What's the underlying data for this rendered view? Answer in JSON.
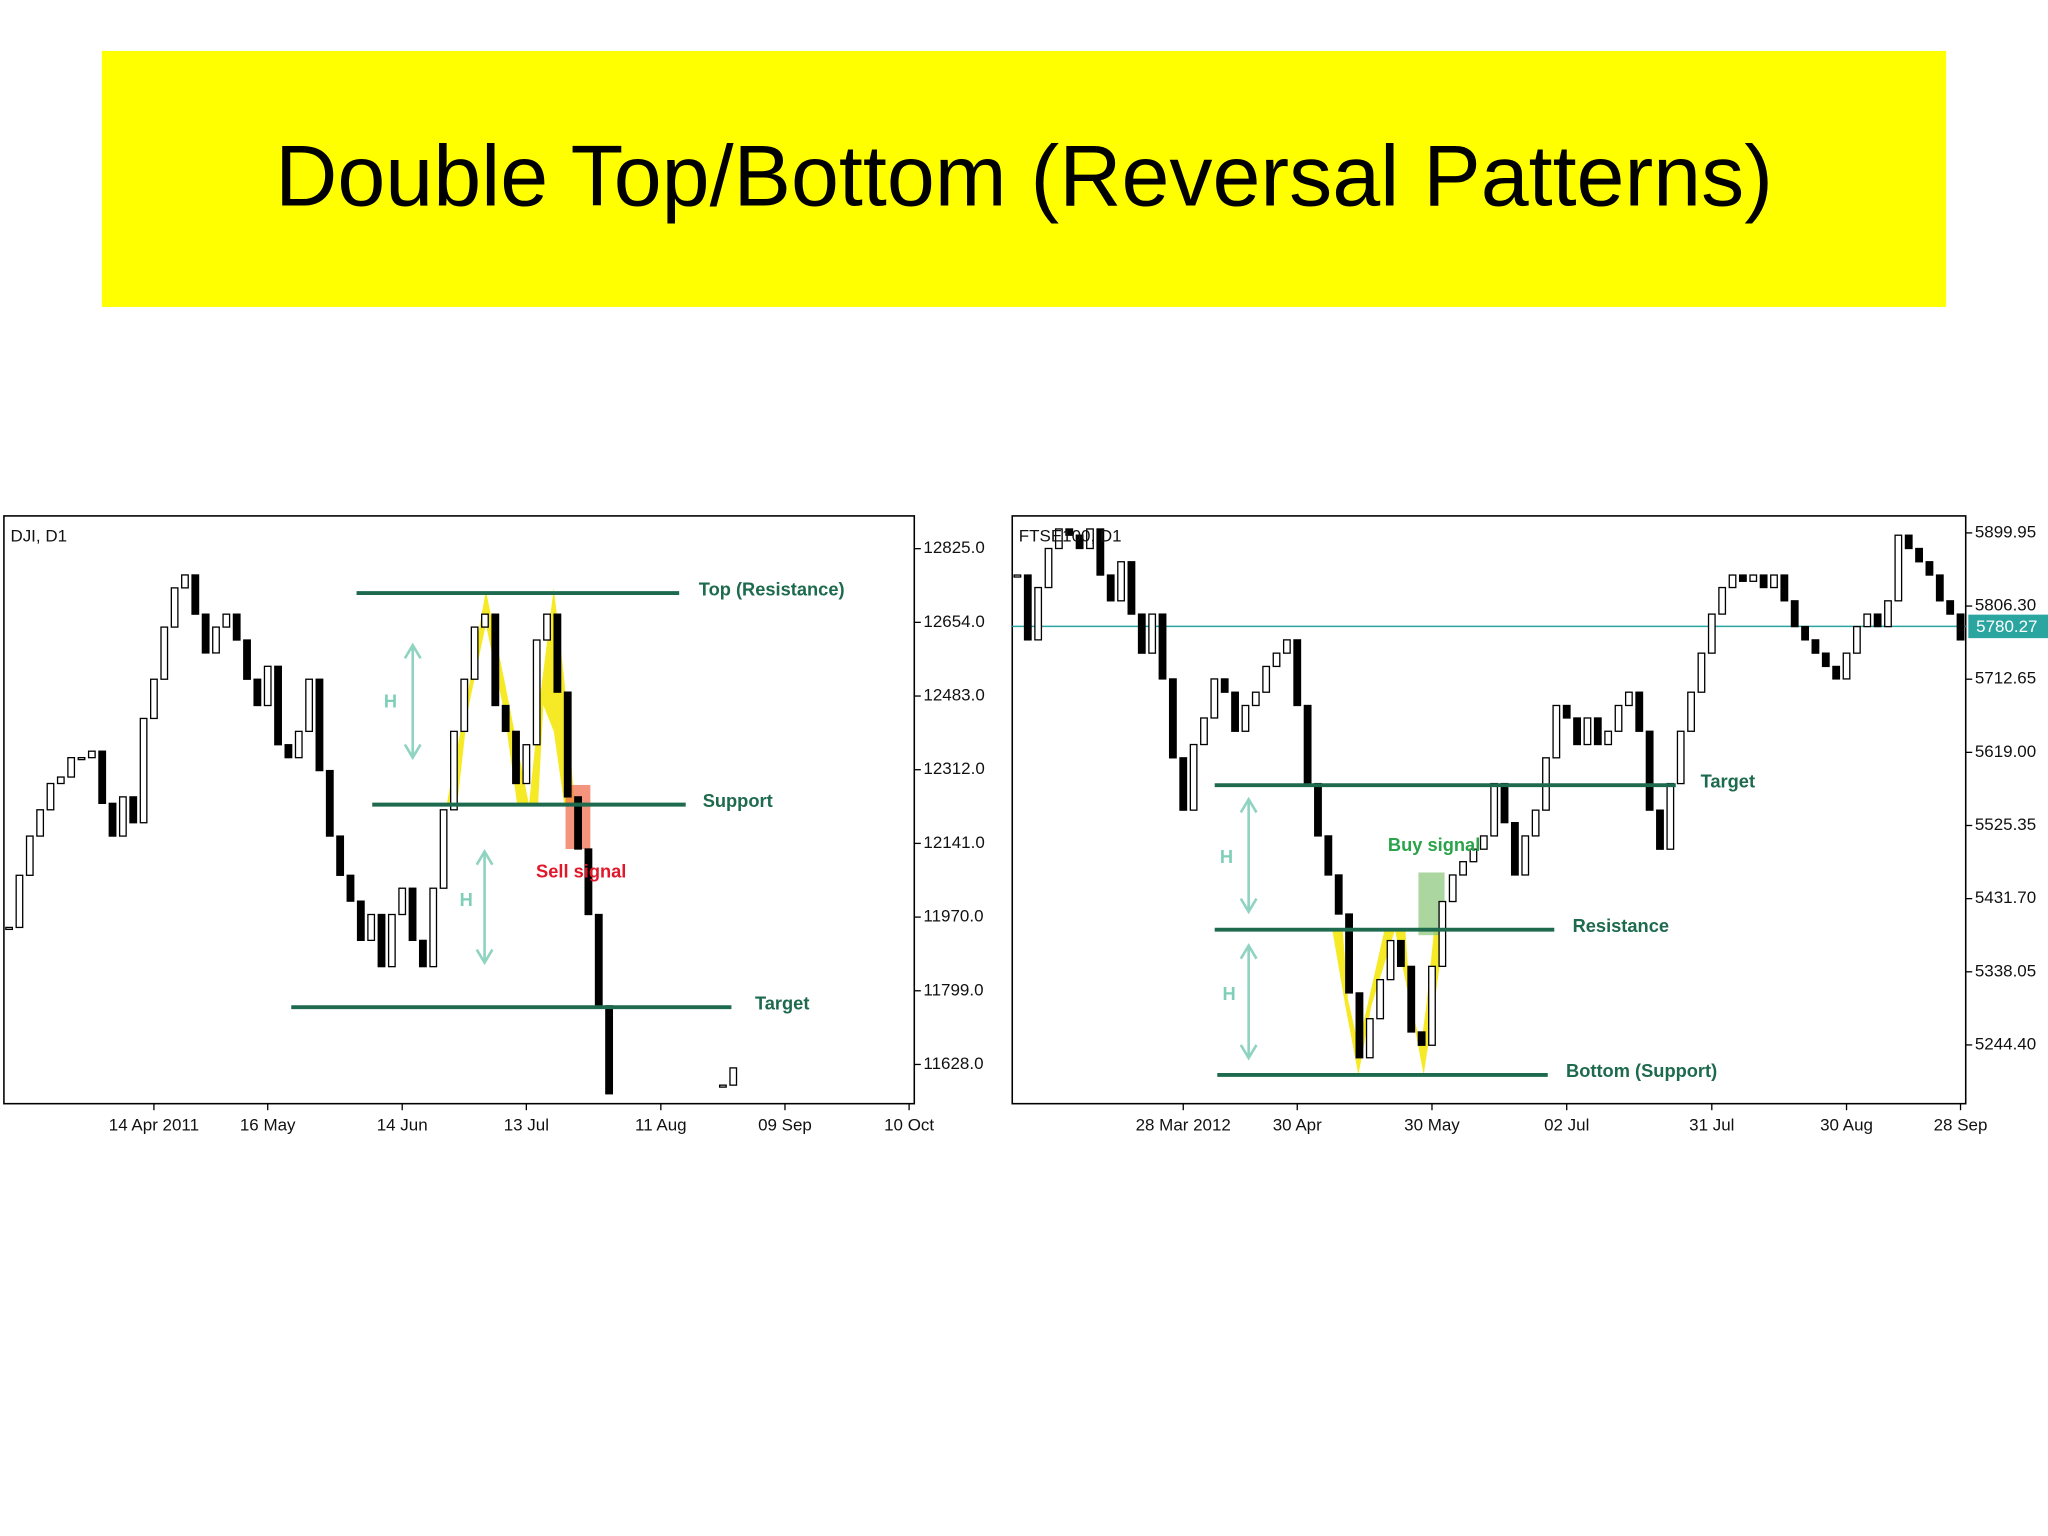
{
  "title": "Double Top/Bottom (Reversal Patterns)",
  "chart_data": [
    {
      "type": "candlestick",
      "title": "DJI, D1",
      "categories": [
        null,
        null,
        null,
        null,
        null,
        null,
        null,
        null,
        null,
        null,
        null,
        null,
        null,
        null,
        "14 Apr 2011",
        null,
        null,
        null,
        null,
        null,
        null,
        null,
        null,
        null,
        null,
        "16 May",
        null,
        null,
        null,
        null,
        null,
        null,
        null,
        null,
        null,
        null,
        null,
        null,
        "14 Jun",
        null,
        null,
        null,
        null,
        null,
        null,
        null,
        null,
        null,
        null,
        null,
        "13 Jul",
        null,
        null,
        null,
        null,
        null,
        null,
        null,
        null,
        null,
        null,
        null,
        null,
        "11 Aug",
        null,
        null,
        null,
        null,
        null,
        null,
        null,
        null,
        null,
        null,
        null,
        "09 Sep",
        null,
        null,
        null,
        null,
        null,
        null,
        null,
        null,
        null,
        null,
        null,
        "10 Oct"
      ],
      "values": [
        11946,
        12067,
        12158,
        12219,
        12280,
        12295,
        12340,
        12340,
        12355,
        12234,
        12158,
        12249,
        12189,
        12431,
        12522,
        12643,
        12734,
        12764,
        12673,
        12583,
        12643,
        12673,
        12613,
        12522,
        12461,
        12552,
        12370,
        12340,
        12401,
        12522,
        12310,
        12158,
        12067,
        12007,
        11916,
        11976,
        11855,
        11976,
        12037,
        11916,
        11855,
        12037,
        12219,
        12401,
        12522,
        12643,
        12673,
        12461,
        12401,
        12280,
        12370,
        12613,
        12673,
        12492,
        12249,
        12128,
        11976,
        11764,
        11560,
        null,
        null,
        null,
        null,
        null,
        null,
        null,
        null,
        null,
        null,
        11580,
        11620,
        null,
        null,
        null,
        null,
        null,
        null,
        null,
        null,
        null,
        null,
        null,
        null,
        null,
        null,
        null,
        null,
        null
      ],
      "ylim": [
        11537,
        12901
      ],
      "yticks": [
        {
          "value": 12825,
          "label": "12825.0"
        },
        {
          "value": 12654,
          "label": "12654.0"
        },
        {
          "value": 12483,
          "label": "12483.0"
        },
        {
          "value": 12312,
          "label": "12312.0"
        },
        {
          "value": 12141,
          "label": "12141.0"
        },
        {
          "value": 11970,
          "label": "11970.0"
        },
        {
          "value": 11799,
          "label": "11799.0"
        },
        {
          "value": 11628,
          "label": "11628.0"
        }
      ],
      "levels": [
        {
          "label": "Top (Resistance)",
          "value": 12722
        },
        {
          "label": "Support",
          "value": 12231
        },
        {
          "label": "Target",
          "value": 11761
        }
      ],
      "notes": [
        "H",
        "H",
        "Sell signal"
      ]
    },
    {
      "type": "candlestick",
      "title": "FTSE100, D1",
      "categories": [
        null,
        null,
        null,
        null,
        null,
        null,
        null,
        null,
        null,
        null,
        null,
        null,
        null,
        null,
        null,
        null,
        "28 Mar 2012",
        null,
        null,
        null,
        null,
        null,
        null,
        null,
        null,
        null,
        null,
        "30 Apr",
        null,
        null,
        null,
        null,
        null,
        null,
        null,
        null,
        null,
        null,
        null,
        null,
        "30 May",
        null,
        null,
        null,
        null,
        null,
        null,
        null,
        null,
        null,
        null,
        null,
        null,
        "02 Jul",
        null,
        null,
        null,
        null,
        null,
        null,
        null,
        null,
        null,
        null,
        null,
        null,
        null,
        "31 Jul",
        null,
        null,
        null,
        null,
        null,
        null,
        null,
        null,
        null,
        null,
        null,
        null,
        "30 Aug",
        null,
        null,
        null,
        null,
        null,
        null,
        null,
        null,
        null,
        null,
        "28 Sep"
      ],
      "values": [
        5846,
        5763,
        5830,
        5880,
        5905,
        5897,
        5880,
        5905,
        5846,
        5813,
        5863,
        5796,
        5746,
        5796,
        5713,
        5612,
        5545,
        5629,
        5663,
        5713,
        5696,
        5646,
        5679,
        5696,
        5729,
        5746,
        5763,
        5679,
        5579,
        5512,
        5462,
        5412,
        5311,
        5228,
        5278,
        5328,
        5378,
        5345,
        5261,
        5244,
        5345,
        5428,
        5462,
        5479,
        5495,
        5512,
        5579,
        5529,
        5462,
        5512,
        5545,
        5612,
        5679,
        5663,
        5629,
        5663,
        5629,
        5646,
        5679,
        5696,
        5646,
        5545,
        5495,
        5579,
        5646,
        5696,
        5746,
        5796,
        5830,
        5846,
        5838,
        5846,
        5830,
        5846,
        5813,
        5780,
        5763,
        5746,
        5729,
        5713,
        5746,
        5780,
        5796,
        5780,
        5813,
        5897,
        5880,
        5863,
        5846,
        5813,
        5796,
        5763
      ],
      "ylim": [
        5169.2,
        5921.7
      ],
      "yticks": [
        5899.95,
        {
          "value": 5806.3,
          "label": "5806.30"
        },
        5712.65,
        {
          "value": 5619,
          "label": "5619.00"
        },
        5525.35,
        {
          "value": 5431.7,
          "label": "5431.70"
        },
        5338.05,
        {
          "value": 5244.4,
          "label": "5244.40"
        }
      ],
      "price_line": 5780.27,
      "levels": [
        {
          "label": "Target",
          "value": 5577
        },
        {
          "label": "Resistance",
          "value": 5392
        },
        {
          "label": "Bottom (Support)",
          "value": 5206
        }
      ],
      "notes": [
        "H",
        "H",
        "Buy signal"
      ]
    }
  ]
}
